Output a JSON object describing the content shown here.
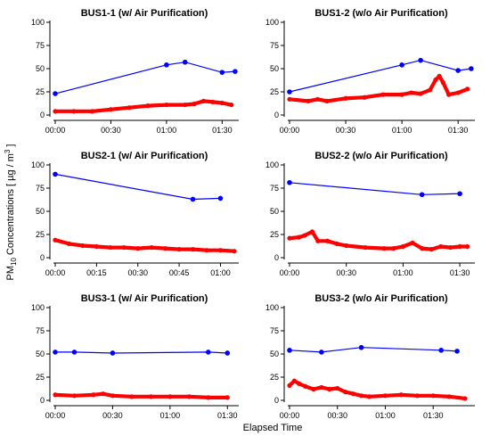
{
  "figure": {
    "y_axis_label": {
      "prefix": "PM",
      "subscript": "10",
      "middle": " Concentrations [ µg / m",
      "superscript": "3",
      "suffix": " ]"
    },
    "x_axis_label": "Elapsed Time",
    "colors": {
      "measured_series": "#0000ff",
      "continuous_series": "#ff0000",
      "axis": "#000000"
    }
  },
  "chart_data": [
    {
      "type": "line",
      "title": "BUS1-1 (w/ Air Purification)",
      "ylim": [
        0,
        100
      ],
      "yticks": [
        0,
        25,
        50,
        75,
        100
      ],
      "xlim": [
        "00:00",
        "01:38"
      ],
      "xticks": [
        "00:00",
        "00:30",
        "01:00",
        "01:30"
      ],
      "series": [
        {
          "style": "line-markers",
          "color": "#0000ff",
          "points": [
            [
              "00:00",
              23
            ],
            [
              "01:00",
              54
            ],
            [
              "01:10",
              57
            ],
            [
              "01:30",
              46
            ],
            [
              "01:37",
              47
            ]
          ]
        },
        {
          "style": "dense-dots",
          "color": "#ff0000",
          "points": [
            [
              "00:00",
              4
            ],
            [
              "00:10",
              4
            ],
            [
              "00:20",
              4
            ],
            [
              "00:30",
              6
            ],
            [
              "00:40",
              8
            ],
            [
              "00:50",
              10
            ],
            [
              "01:00",
              11
            ],
            [
              "01:10",
              11
            ],
            [
              "01:15",
              12
            ],
            [
              "01:20",
              15
            ],
            [
              "01:25",
              14
            ],
            [
              "01:30",
              13
            ],
            [
              "01:35",
              11
            ]
          ]
        }
      ]
    },
    {
      "type": "line",
      "title": "BUS1-2 (w/o Air Purification)",
      "ylim": [
        0,
        100
      ],
      "yticks": [
        0,
        25,
        50,
        75,
        100
      ],
      "xlim": [
        "00:00",
        "01:38"
      ],
      "xticks": [
        "00:00",
        "00:30",
        "01:00",
        "01:30"
      ],
      "series": [
        {
          "style": "line-markers",
          "color": "#0000ff",
          "points": [
            [
              "00:00",
              25
            ],
            [
              "01:00",
              54
            ],
            [
              "01:10",
              59
            ],
            [
              "01:30",
              48
            ],
            [
              "01:37",
              50
            ]
          ]
        },
        {
          "style": "dense-dots",
          "color": "#ff0000",
          "points": [
            [
              "00:00",
              17
            ],
            [
              "00:10",
              15
            ],
            [
              "00:15",
              17
            ],
            [
              "00:20",
              15
            ],
            [
              "00:30",
              18
            ],
            [
              "00:40",
              19
            ],
            [
              "00:50",
              22
            ],
            [
              "01:00",
              22
            ],
            [
              "01:05",
              24
            ],
            [
              "01:10",
              23
            ],
            [
              "01:15",
              27
            ],
            [
              "01:18",
              38
            ],
            [
              "01:20",
              42
            ],
            [
              "01:22",
              35
            ],
            [
              "01:25",
              22
            ],
            [
              "01:30",
              24
            ],
            [
              "01:35",
              28
            ]
          ]
        }
      ]
    },
    {
      "type": "line",
      "title": "BUS2-1 (w/ Air Purification)",
      "ylim": [
        0,
        100
      ],
      "yticks": [
        0,
        25,
        50,
        75,
        100
      ],
      "xlim": [
        "00:00",
        "01:06"
      ],
      "xticks": [
        "00:00",
        "00:15",
        "00:30",
        "00:45",
        "01:00"
      ],
      "series": [
        {
          "style": "line-markers",
          "color": "#0000ff",
          "points": [
            [
              "00:00",
              90
            ],
            [
              "00:50",
              63
            ],
            [
              "01:00",
              64
            ]
          ]
        },
        {
          "style": "dense-dots",
          "color": "#ff0000",
          "points": [
            [
              "00:00",
              19
            ],
            [
              "00:05",
              15
            ],
            [
              "00:10",
              13
            ],
            [
              "00:15",
              12
            ],
            [
              "00:20",
              11
            ],
            [
              "00:25",
              11
            ],
            [
              "00:30",
              10
            ],
            [
              "00:35",
              11
            ],
            [
              "00:40",
              10
            ],
            [
              "00:45",
              9
            ],
            [
              "00:50",
              9
            ],
            [
              "00:55",
              8
            ],
            [
              "01:00",
              8
            ],
            [
              "01:05",
              7
            ]
          ]
        }
      ]
    },
    {
      "type": "line",
      "title": "BUS2-2 (w/o Air Purification)",
      "ylim": [
        0,
        100
      ],
      "yticks": [
        0,
        25,
        50,
        75,
        100
      ],
      "xlim": [
        "00:00",
        "01:37"
      ],
      "xticks": [
        "00:00",
        "00:30",
        "01:00",
        "01:30"
      ],
      "series": [
        {
          "style": "line-markers",
          "color": "#0000ff",
          "points": [
            [
              "00:00",
              81
            ],
            [
              "01:10",
              68
            ],
            [
              "01:30",
              69
            ]
          ]
        },
        {
          "style": "dense-dots",
          "color": "#ff0000",
          "points": [
            [
              "00:00",
              21
            ],
            [
              "00:05",
              22
            ],
            [
              "00:08",
              24
            ],
            [
              "00:12",
              28
            ],
            [
              "00:15",
              18
            ],
            [
              "00:20",
              18
            ],
            [
              "00:25",
              15
            ],
            [
              "00:30",
              13
            ],
            [
              "00:40",
              11
            ],
            [
              "00:50",
              10
            ],
            [
              "00:55",
              10
            ],
            [
              "01:00",
              12
            ],
            [
              "01:05",
              16
            ],
            [
              "01:10",
              10
            ],
            [
              "01:15",
              9
            ],
            [
              "01:20",
              12
            ],
            [
              "01:25",
              11
            ],
            [
              "01:30",
              12
            ],
            [
              "01:34",
              12
            ]
          ]
        }
      ]
    },
    {
      "type": "line",
      "title": "BUS3-1 (w/ Air Purification)",
      "ylim": [
        0,
        100
      ],
      "yticks": [
        0,
        25,
        50,
        75,
        100
      ],
      "xlim": [
        "00:00",
        "01:35"
      ],
      "xticks": [
        "00:00",
        "00:30",
        "01:00",
        "01:30"
      ],
      "series": [
        {
          "style": "line-markers",
          "color": "#0000ff",
          "points": [
            [
              "00:00",
              52
            ],
            [
              "00:10",
              52
            ],
            [
              "00:30",
              51
            ],
            [
              "01:20",
              52
            ],
            [
              "01:30",
              51
            ]
          ]
        },
        {
          "style": "dense-dots",
          "color": "#ff0000",
          "points": [
            [
              "00:00",
              6
            ],
            [
              "00:10",
              5
            ],
            [
              "00:20",
              6
            ],
            [
              "00:25",
              7
            ],
            [
              "00:30",
              5
            ],
            [
              "00:40",
              4
            ],
            [
              "00:50",
              4
            ],
            [
              "01:00",
              4
            ],
            [
              "01:10",
              4
            ],
            [
              "01:20",
              3
            ],
            [
              "01:30",
              3
            ]
          ]
        }
      ]
    },
    {
      "type": "line",
      "title": "BUS3-2 (w/o Air Purification)",
      "ylim": [
        0,
        100
      ],
      "yticks": [
        0,
        25,
        50,
        75,
        100
      ],
      "xlim": [
        "00:00",
        "01:55"
      ],
      "xticks": [
        "00:00",
        "00:30",
        "01:00",
        "01:30"
      ],
      "series": [
        {
          "style": "line-markers",
          "color": "#0000ff",
          "points": [
            [
              "00:00",
              54
            ],
            [
              "00:20",
              52
            ],
            [
              "00:45",
              57
            ],
            [
              "01:35",
              54
            ],
            [
              "01:45",
              53
            ]
          ]
        },
        {
          "style": "dense-dots",
          "color": "#ff0000",
          "points": [
            [
              "00:00",
              16
            ],
            [
              "00:03",
              21
            ],
            [
              "00:06",
              18
            ],
            [
              "00:10",
              15
            ],
            [
              "00:15",
              12
            ],
            [
              "00:20",
              14
            ],
            [
              "00:25",
              12
            ],
            [
              "00:30",
              13
            ],
            [
              "00:35",
              9
            ],
            [
              "00:40",
              7
            ],
            [
              "00:45",
              5
            ],
            [
              "00:50",
              4
            ],
            [
              "01:00",
              5
            ],
            [
              "01:10",
              6
            ],
            [
              "01:20",
              5
            ],
            [
              "01:30",
              5
            ],
            [
              "01:40",
              4
            ],
            [
              "01:50",
              2
            ]
          ]
        }
      ]
    }
  ]
}
